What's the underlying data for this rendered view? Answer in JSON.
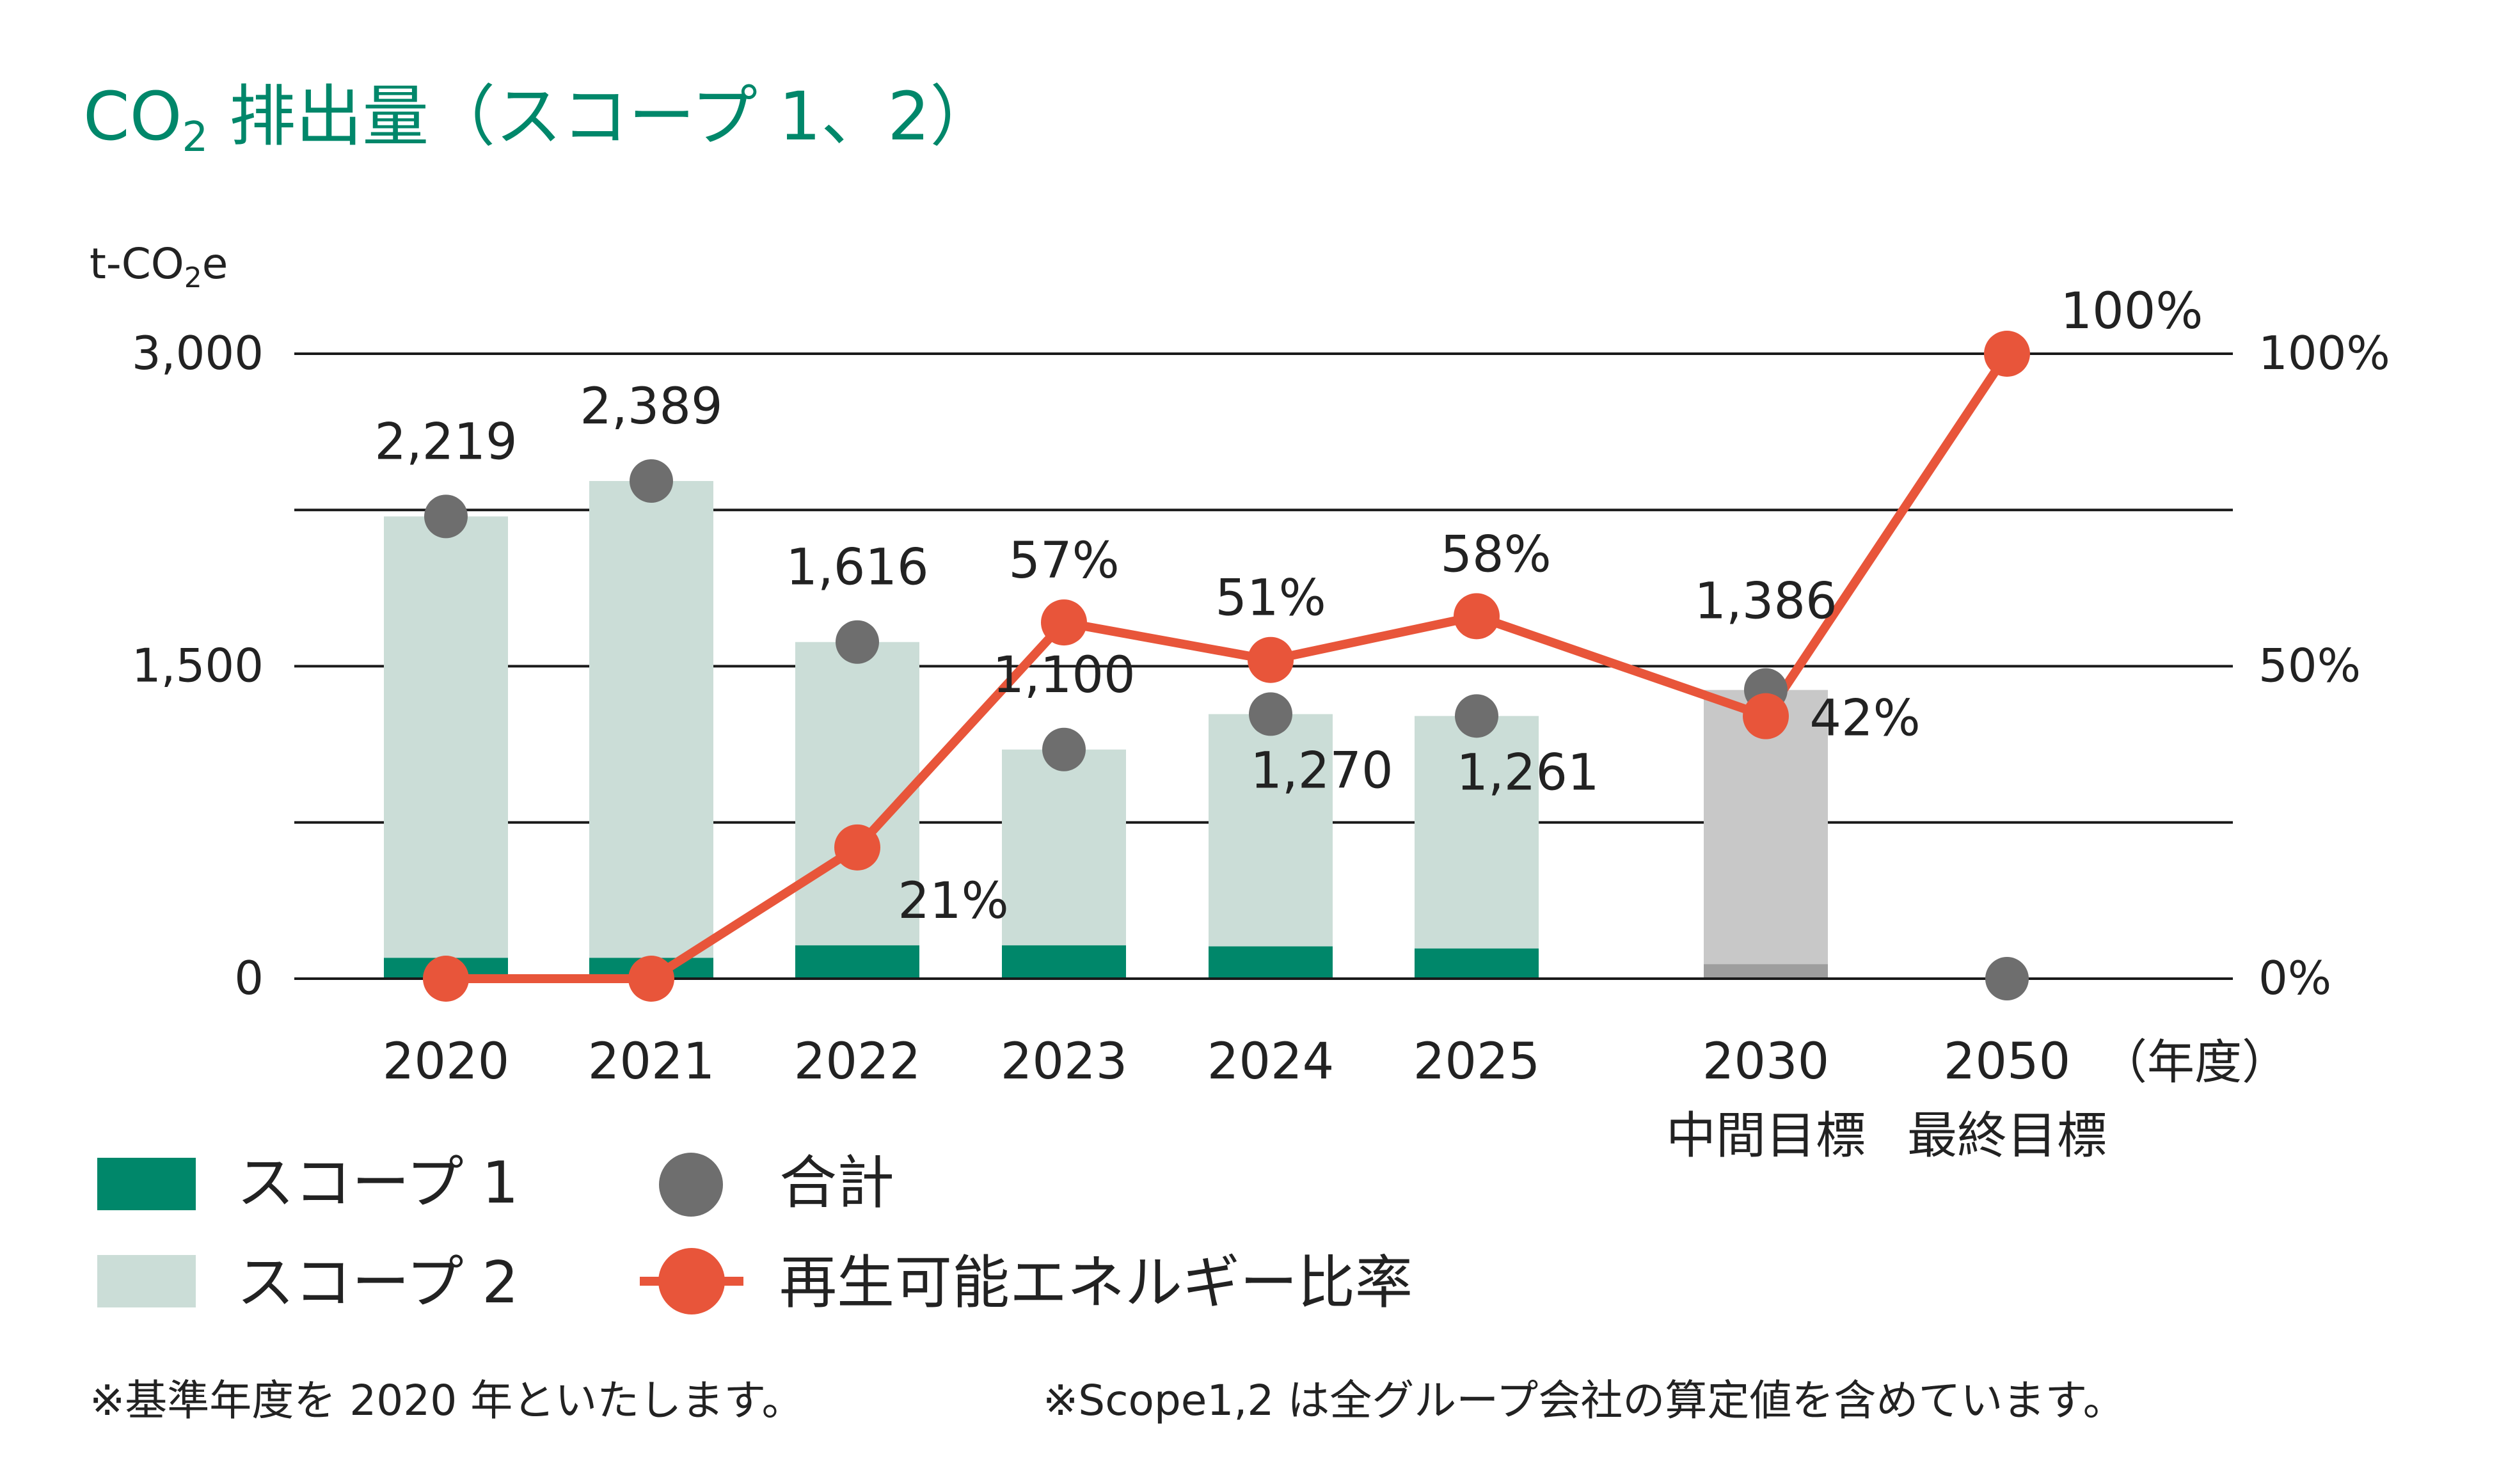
{
  "title": {
    "main": "CO",
    "sub": "2",
    "rest": " 排出量（スコープ 1、2）"
  },
  "unit": {
    "main": "t-CO",
    "sub": "2",
    "rest": "e"
  },
  "colors": {
    "title": "#00876a",
    "scope1": "#00876a",
    "scope2": "#cbddd7",
    "target_bar": "#c8c8c8",
    "target_scope1": "#9e9e9e",
    "total_marker": "#6e6e6e",
    "renewable_line": "#e8553a",
    "grid": "#1a1a1a",
    "text": "#222222"
  },
  "chart_data": {
    "type": "bar",
    "categories": [
      "2020",
      "2021",
      "2022",
      "2023",
      "2024",
      "2025",
      "2030",
      "2050"
    ],
    "category_sublabels": [
      "",
      "",
      "",
      "",
      "",
      "",
      "中間目標",
      "最終目標"
    ],
    "x_unit_label": "（年度）",
    "y_left": {
      "ylim": [
        0,
        3000
      ],
      "ticks": [
        "0",
        "1,500",
        "3,000"
      ],
      "tick_values": [
        0,
        1500,
        3000
      ],
      "unlabeled_grid_values": [
        750,
        2250
      ]
    },
    "y_right": {
      "ylim": [
        0,
        100
      ],
      "ticks": [
        "0%",
        "50%",
        "100%"
      ],
      "tick_values": [
        0,
        50,
        100
      ]
    },
    "series": [
      {
        "name": "スコープ 1",
        "type": "stacked-bar",
        "values": [
          100,
          100,
          160,
          160,
          155,
          145,
          70,
          null
        ]
      },
      {
        "name": "スコープ 2",
        "type": "stacked-bar",
        "values": [
          2119,
          2289,
          1456,
          940,
          1115,
          1116,
          1316,
          null
        ]
      },
      {
        "name": "合計",
        "type": "marker",
        "values": [
          2219,
          2389,
          1616,
          1100,
          1270,
          1261,
          1386,
          0
        ],
        "labels": [
          "2,219",
          "2,389",
          "1,616",
          "1,100",
          "1,270",
          "1,261",
          "1,386",
          ""
        ]
      },
      {
        "name": "再生可能エネルギー比率",
        "type": "line",
        "axis": "right",
        "values": [
          0,
          0,
          21,
          57,
          51,
          58,
          42,
          100
        ],
        "labels": [
          "",
          "",
          "21%",
          "57%",
          "51%",
          "58%",
          "42%",
          "100%"
        ]
      }
    ],
    "grid": true
  },
  "legend": [
    {
      "key": "scope1",
      "label": "スコープ 1"
    },
    {
      "key": "total",
      "label": "合計"
    },
    {
      "key": "scope2",
      "label": "スコープ 2"
    },
    {
      "key": "renewable",
      "label": "再生可能エネルギー比率"
    }
  ],
  "footnotes": [
    "※基準年度を 2020 年といたします。",
    "※Scope1,2 は全グループ会社の算定値を含めています。"
  ]
}
